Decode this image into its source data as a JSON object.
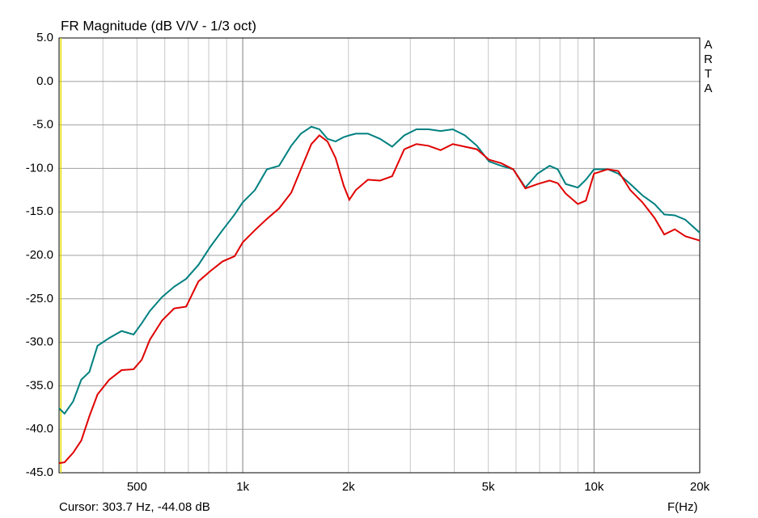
{
  "chart_data": {
    "type": "line",
    "title": "FR Magnitude (dB V/V - 1/3 oct)",
    "x_label": "F(Hz)",
    "brand": "ARTA",
    "cursor_label": "Cursor: 303.7 Hz, -44.08 dB",
    "cursor_x": 303.7,
    "cursor_color": "#e8e000",
    "xlog": true,
    "grid": true,
    "xlim": [
      300,
      20000
    ],
    "ylim": [
      -45,
      5
    ],
    "xticks": [
      500,
      {
        "value": 1000,
        "label": "1k"
      },
      {
        "value": 2000,
        "label": "2k"
      },
      {
        "value": 5000,
        "label": "5k"
      },
      {
        "value": 10000,
        "label": "10k"
      },
      {
        "value": 20000,
        "label": "20k"
      }
    ],
    "xgrid": [
      400,
      600,
      700,
      800,
      900,
      3000,
      4000,
      6000,
      7000,
      8000,
      9000
    ],
    "yticks": [
      {
        "value": 5,
        "label": "5.0"
      },
      {
        "value": 0,
        "label": "0.0"
      },
      {
        "value": -5,
        "label": "-5.0"
      },
      {
        "value": -10,
        "label": "-10.0"
      },
      {
        "value": -15,
        "label": "-15.0"
      },
      {
        "value": -20,
        "label": "-20.0"
      },
      {
        "value": -25,
        "label": "-25.0"
      },
      {
        "value": -30,
        "label": "-30.0"
      },
      {
        "value": -35,
        "label": "-35.0"
      },
      {
        "value": -40,
        "label": "-40.0"
      },
      {
        "value": -45,
        "label": "-45.0"
      }
    ],
    "x": [
      300,
      311,
      329,
      347,
      366,
      386,
      417,
      452,
      489,
      516,
      544,
      589,
      638,
      690,
      748,
      809,
      876,
      948,
      1000,
      1083,
      1172,
      1269,
      1374,
      1464,
      1568,
      1653,
      1743,
      1838,
      1939,
      2011,
      2098,
      2272,
      2459,
      2663,
      2883,
      3122,
      3380,
      3659,
      3962,
      4289,
      4642,
      5025,
      5441,
      5890,
      6377,
      6904,
      7474,
      7884,
      8309,
      8995,
      9484,
      10000,
      10943,
      11722,
      12690,
      13738,
      14873,
      15849,
      16979,
      18193,
      20000
    ],
    "series": [
      {
        "color": "#008080",
        "values": [
          -37.6,
          -38.2,
          -36.8,
          -34.3,
          -33.4,
          -30.4,
          -29.5,
          -28.7,
          -29.1,
          -27.8,
          -26.4,
          -24.8,
          -23.6,
          -22.7,
          -21.1,
          -19.0,
          -17.1,
          -15.3,
          -13.9,
          -12.5,
          -10.1,
          -9.7,
          -7.4,
          -6.0,
          -5.2,
          -5.5,
          -6.6,
          -6.9,
          -6.4,
          -6.2,
          -6.0,
          -6.0,
          -6.6,
          -7.5,
          -6.2,
          -5.5,
          -5.5,
          -5.7,
          -5.5,
          -6.2,
          -7.4,
          -9.2,
          -9.7,
          -10.1,
          -12.2,
          -10.6,
          -9.7,
          -10.1,
          -11.8,
          -12.2,
          -11.3,
          -10.1,
          -10.1,
          -10.6,
          -11.8,
          -13.1,
          -14.1,
          -15.3,
          -15.4,
          -15.9,
          -17.4
        ]
      },
      {
        "color": "#e00000",
        "values": [
          -43.9,
          -43.8,
          -42.7,
          -41.3,
          -38.5,
          -36.0,
          -34.3,
          -33.2,
          -33.1,
          -32.0,
          -29.7,
          -27.5,
          -26.1,
          -25.9,
          -23.0,
          -21.8,
          -20.7,
          -20.1,
          -18.5,
          -17.1,
          -15.8,
          -14.6,
          -12.8,
          -10.1,
          -7.2,
          -6.2,
          -6.9,
          -8.8,
          -12.0,
          -13.6,
          -12.5,
          -11.3,
          -11.4,
          -10.9,
          -7.8,
          -7.2,
          -7.4,
          -7.9,
          -7.2,
          -7.5,
          -7.8,
          -9.0,
          -9.4,
          -10.1,
          -12.3,
          -11.8,
          -11.4,
          -11.7,
          -12.9,
          -14.1,
          -13.7,
          -10.6,
          -10.1,
          -10.3,
          -12.5,
          -13.9,
          -15.7,
          -17.6,
          -17.0,
          -17.8,
          -18.3
        ]
      }
    ]
  }
}
